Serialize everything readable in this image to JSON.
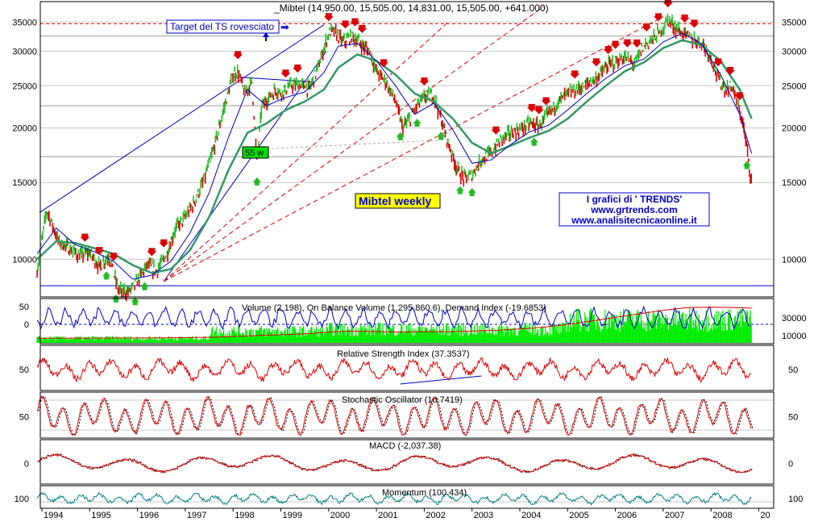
{
  "chart_data": {
    "type": "line",
    "title": "_Mibtel (14,950.00, 15,505.00, 14,831.00, 15,505.00, +641.000)",
    "chart_label": "Mibtel weekly",
    "target_note": "Target del TS rovesciato",
    "arrow_glyph": "➡",
    "credit_lines": [
      "I grafici di ' TRENDS'",
      "www.grtrends.com",
      "www.analisitecnicaonline.it"
    ],
    "box_label": "55 w",
    "x_labels": [
      "1994",
      "1995",
      "1996",
      "1997",
      "1998",
      "1999",
      "2000",
      "2001",
      "2002",
      "2003",
      "2004",
      "2005",
      "2006",
      "2007",
      "2008",
      "20"
    ],
    "price_ticks": [
      35000,
      30000,
      25000,
      20000,
      15000,
      10000
    ],
    "price_scale": "log",
    "price_range": [
      8200,
      38000
    ],
    "target_level": 34700,
    "support_level": 8700,
    "grid": true,
    "colors": {
      "blue": "#0000cc",
      "red": "#dd0000",
      "green": "#22bb22",
      "ma": "#339966",
      "teal": "#008080",
      "grid": "#c8c8c8",
      "bright_green": "#00ee00",
      "panel_bg": "#ffffff",
      "label_box_bg": "#ffff00"
    },
    "price_series": {
      "name": "Mibtel",
      "x": [
        1993.9,
        1994.1,
        1994.35,
        1994.6,
        1994.8,
        1995.0,
        1995.2,
        1995.4,
        1995.6,
        1995.8,
        1996.0,
        1996.2,
        1996.4,
        1996.6,
        1996.8,
        1997.0,
        1997.2,
        1997.4,
        1997.6,
        1997.8,
        1998.0,
        1998.1,
        1998.25,
        1998.4,
        1998.5,
        1998.6,
        1998.75,
        1998.9,
        1999.0,
        1999.2,
        1999.4,
        1999.6,
        1999.8,
        2000.0,
        2000.1,
        2000.3,
        2000.5,
        2000.7,
        2000.85,
        2001.0,
        2001.2,
        2001.4,
        2001.55,
        2001.7,
        2001.85,
        2002.0,
        2002.2,
        2002.35,
        2002.5,
        2002.7,
        2002.85,
        2003.0,
        2003.2,
        2003.4,
        2003.6,
        2003.8,
        2004.0,
        2004.2,
        2004.4,
        2004.6,
        2004.8,
        2005.0,
        2005.2,
        2005.4,
        2005.6,
        2005.8,
        2006.0,
        2006.2,
        2006.4,
        2006.6,
        2006.8,
        2007.0,
        2007.1,
        2007.25,
        2007.4,
        2007.6,
        2007.8,
        2008.0,
        2008.15,
        2008.3,
        2008.45,
        2008.55,
        2008.65,
        2008.75,
        2008.85
      ],
      "values": [
        9400,
        13000,
        11000,
        10500,
        10200,
        10400,
        9600,
        10200,
        8500,
        8400,
        8900,
        9700,
        9400,
        10200,
        11800,
        12500,
        13600,
        15300,
        18000,
        22000,
        26500,
        27000,
        24000,
        25500,
        16500,
        22500,
        23500,
        24500,
        24000,
        25000,
        25200,
        24500,
        28000,
        33000,
        33500,
        31500,
        32500,
        31000,
        30000,
        27000,
        25500,
        23000,
        20000,
        21000,
        22500,
        23500,
        23800,
        21000,
        18500,
        16000,
        15300,
        15600,
        17000,
        17500,
        18800,
        19500,
        19800,
        20500,
        20200,
        21500,
        23000,
        24000,
        24500,
        25200,
        26000,
        27500,
        28500,
        29000,
        28000,
        31000,
        32000,
        34000,
        35500,
        34000,
        33000,
        32000,
        31500,
        29000,
        26000,
        24500,
        25000,
        22500,
        21000,
        18000,
        15000
      ]
    },
    "ma_fast": {
      "name": "MA fast",
      "x": [
        1993.9,
        1994.3,
        1994.7,
        1995.1,
        1995.5,
        1995.9,
        1996.3,
        1996.7,
        1997.1,
        1997.5,
        1997.9,
        1998.3,
        1998.7,
        1999.1,
        1999.5,
        1999.9,
        2000.2,
        2000.6,
        2001.0,
        2001.4,
        2001.8,
        2002.2,
        2002.6,
        2003.0,
        2003.4,
        2003.8,
        2004.2,
        2004.6,
        2005.0,
        2005.4,
        2005.8,
        2006.2,
        2006.6,
        2007.0,
        2007.4,
        2007.8,
        2008.2,
        2008.6,
        2008.85
      ],
      "values": [
        10300,
        11800,
        10800,
        10400,
        9900,
        9000,
        9200,
        9900,
        11500,
        14200,
        19000,
        24500,
        22500,
        23500,
        24200,
        26800,
        30800,
        31300,
        28500,
        25000,
        21500,
        22800,
        19800,
        16600,
        16900,
        18300,
        19600,
        20300,
        22000,
        24000,
        26000,
        27800,
        28800,
        31500,
        33000,
        31200,
        26500,
        21500,
        17500
      ]
    },
    "ma_slow": {
      "name": "MA slow",
      "x": [
        1993.9,
        1994.3,
        1994.7,
        1995.1,
        1995.5,
        1995.9,
        1996.3,
        1996.7,
        1997.1,
        1997.5,
        1997.9,
        1998.3,
        1998.7,
        1999.1,
        1999.5,
        1999.9,
        2000.2,
        2000.6,
        2001.0,
        2001.4,
        2001.8,
        2002.2,
        2002.6,
        2003.0,
        2003.4,
        2003.8,
        2004.2,
        2004.6,
        2005.0,
        2005.4,
        2005.8,
        2006.2,
        2006.6,
        2007.0,
        2007.4,
        2007.8,
        2008.2,
        2008.6,
        2008.85
      ],
      "values": [
        10000,
        11000,
        10900,
        10600,
        10300,
        9700,
        9300,
        9500,
        10500,
        12500,
        16000,
        19500,
        20500,
        22000,
        23000,
        24500,
        27500,
        29500,
        28500,
        26500,
        24000,
        23000,
        21000,
        18500,
        17500,
        18200,
        19000,
        19700,
        21000,
        23000,
        25000,
        27000,
        28300,
        30500,
        31800,
        31000,
        28500,
        24500,
        21000
      ]
    },
    "trendlines": [
      {
        "from": [
          1993.95,
          12800
        ],
        "to": [
          1999.9,
          34500
        ],
        "color": "blue"
      },
      {
        "from": [
          1996.55,
          8900
        ],
        "to": [
          1999.95,
          30000
        ],
        "color": "blue"
      },
      {
        "from": [
          1998.0,
          26200
        ],
        "to": [
          1999.7,
          25500
        ],
        "color": "blue"
      },
      {
        "from": [
          1996.55,
          8900
        ],
        "to": [
          2002.5,
          35000
        ],
        "color": "red"
      },
      {
        "from": [
          1996.55,
          8900
        ],
        "to": [
          2004.5,
          38000
        ],
        "color": "red"
      },
      {
        "from": [
          1996.55,
          8900
        ],
        "to": [
          2007.0,
          36000
        ],
        "color": "red"
      },
      {
        "from": [
          1998.2,
          17800
        ],
        "to": [
          2002.5,
          18800
        ],
        "color": "gray"
      }
    ],
    "arrows_down": [
      1994.9,
      1995.2,
      1995.5,
      1996.3,
      1996.55,
      1998.1,
      1999.1,
      1999.35,
      2000.0,
      2000.35,
      2000.55,
      2000.7,
      2001.15,
      2002.0,
      2003.5,
      2004.25,
      2004.4,
      2004.55,
      2005.15,
      2005.6,
      2005.85,
      2006.0,
      2006.25,
      2006.45,
      2006.65,
      2006.9,
      2007.1,
      2007.45,
      2007.65,
      2008.15,
      2008.4,
      2008.6
    ],
    "arrows_up": [
      1995.35,
      1995.55,
      1995.95,
      1996.15,
      1998.5,
      2001.5,
      2001.85,
      2002.35,
      2002.75,
      2003.0,
      2004.3,
      2008.75
    ],
    "volume_panel": {
      "label": "Volume (2,198), On Balance Volume (1,295,860.6), Demand Index (-19.6853)",
      "left_ticks": [
        50,
        0
      ],
      "right_ticks": [
        30000,
        10000
      ],
      "obv_x": [
        1993.9,
        1994.5,
        1995.0,
        1995.5,
        1996.0,
        1996.5,
        1997.0,
        1997.5,
        1998.0,
        1998.5,
        1999.0,
        1999.5,
        2000.0,
        2000.5,
        2001.0,
        2001.5,
        2002.0,
        2002.5,
        2003.0,
        2003.5,
        2004.0,
        2004.5,
        2005.0,
        2005.5,
        2006.0,
        2006.5,
        2007.0,
        2007.5,
        2008.0,
        2008.5,
        2008.85
      ],
      "obv_values": [
        2500,
        2600,
        2600,
        2700,
        2800,
        2900,
        3200,
        3500,
        4500,
        5500,
        6500,
        7500,
        9500,
        10500,
        10000,
        9500,
        10000,
        9800,
        10500,
        11500,
        13000,
        15000,
        18000,
        22000,
        26000,
        30000,
        34000,
        37000,
        37500,
        37000,
        36500
      ]
    },
    "rsi_panel": {
      "label": "Relative Strength Index (37.3537)",
      "left_ticks": [
        50
      ],
      "right_ticks": [
        50
      ]
    },
    "stoch_panel": {
      "label": "Stochastic Oscillator (10.7419)",
      "left_ticks": [
        50
      ],
      "right_ticks": [
        50
      ]
    },
    "macd_panel": {
      "label": "MACD (-2,037.38)",
      "left_ticks": [
        0
      ],
      "right_ticks": [
        0
      ]
    },
    "momentum_panel": {
      "label": "Momentum (100.434)",
      "left_ticks": [
        100
      ],
      "right_ticks": [
        100
      ]
    }
  }
}
